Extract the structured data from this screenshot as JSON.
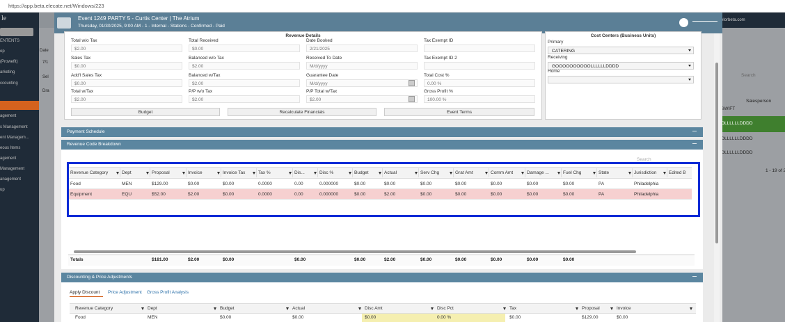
{
  "browser": {
    "url": "https://app.beta.elecate.net/Windows/223"
  },
  "background": {
    "logo": "le",
    "sidebar": [
      "ENTENTS",
      "op",
      "(Prowefit)",
      "arketing",
      "ccounting",
      "agement",
      "s Management",
      "ent Managem...",
      "eous Items",
      "agement",
      "Management",
      "anagement",
      "up"
    ],
    "behind_left": [
      "Date",
      "7/1",
      "Sel",
      "Dra"
    ],
    "behind_right": {
      "user": "elorbeta.com",
      "search": "Search",
      "column": "Salesperson",
      "cells": [
        "SWIFT",
        "OLLLLLLDDDD",
        "OLLLLLLDDDD",
        "OLLLLLLDDDD"
      ],
      "pager": "1 - 19 of 2"
    }
  },
  "window": {
    "title": "Event 1249 PARTY 5 - Curtis Center | The Atrium",
    "subtitle": "Thursday, 01/30/2025, 9:00 AM - 1 - Internal - Stations - Confirmed - Paid"
  },
  "revenue_details": {
    "title": "Revenue Details",
    "columns": [
      [
        {
          "label": "Total w/o Tax",
          "value": "$2.00"
        },
        {
          "label": "Sales Tax",
          "value": "$0.00"
        },
        {
          "label": "Add'l Sales Tax",
          "value": "$0.00"
        },
        {
          "label": "Total w/Tax",
          "value": "$2.00"
        }
      ],
      [
        {
          "label": "Total Received",
          "value": "$0.00"
        },
        {
          "label": "Balanced w/o Tax",
          "value": "$2.00"
        },
        {
          "label": "Balanced w/Tax",
          "value": "$2.00"
        },
        {
          "label": "P/P w/o Tax",
          "value": "$2.00"
        }
      ],
      [
        {
          "label": "Date Booked",
          "value": "2/21/2025"
        },
        {
          "label": "Received To Date",
          "value": "M/d/yyyy"
        },
        {
          "label": "Guarantee Date",
          "value": "M/d/yyyy"
        },
        {
          "label": "P/P Total w/Tax",
          "value": "$2.00"
        }
      ],
      [
        {
          "label": "Tax Exempt ID"
        },
        {
          "label": "Tax Exempt ID 2"
        },
        {
          "label": "Total Cost %",
          "value": "0.00 %"
        },
        {
          "label": "Gross Profit %",
          "value": "100.00 %"
        }
      ]
    ],
    "buttons": [
      "Budget",
      "Recalculate Financials",
      "Event Terms"
    ]
  },
  "cost_centers": {
    "title": "Cost Centers (Business Units)",
    "fields": [
      {
        "label": "Primary",
        "value": "CATERING"
      },
      {
        "label": "Receiving",
        "value": "GOOOOOOOOOOLLLLLLDDDD"
      },
      {
        "label": "Home"
      }
    ]
  },
  "panels": [
    "Payment Schedule",
    "Revenue Code Breakdown"
  ],
  "revenue_table": {
    "search": "Search",
    "columns": [
      "Revenue Category",
      "Dept",
      "Proposal",
      "Invoice",
      "Invoice Tax",
      "Tax %",
      "Dis...",
      "Disc %",
      "Budget",
      "Actual",
      "Serv Chg",
      "Grat Amt",
      "Comm Amt",
      "Damage ...",
      "Fuel Chg",
      "State",
      "Jurisdiction",
      "Edited By"
    ],
    "rows": [
      [
        "Food",
        "MEN",
        "$129.00",
        "$0.00",
        "$0.00",
        "0.0000",
        "0.00",
        "0.000000",
        "$0.00",
        "$0.00",
        "$0.00",
        "$0.00",
        "$0.00",
        "$0.00",
        "$0.00",
        "PA",
        "Philadelphia",
        null
      ],
      [
        "Equipment",
        "EQU",
        "$52.00",
        "$2.00",
        "$0.00",
        "0.0000",
        "0.00",
        "0.000000",
        "$0.00",
        "$2.00",
        "$0.00",
        "$0.00",
        "$0.00",
        "$0.00",
        "$0.00",
        "PA",
        "Philadelphia",
        null
      ]
    ],
    "totals": [
      "Totals",
      null,
      "$181.00",
      "$2.00",
      "$0.00",
      null,
      "$0.00",
      null,
      "$0.00",
      "$2.00",
      "$0.00",
      "$0.00",
      "$0.00",
      "$0.00",
      "$0.00",
      null,
      null,
      null
    ]
  },
  "discounting": {
    "title": "Discounting & Price Adjustments",
    "tabs": [
      "Apply Discount",
      "Price Adjustment",
      "Gross Profit Analysis"
    ],
    "columns": [
      "Revenue Category",
      "Dept",
      "Budget",
      "Actual",
      "Disc Amt",
      "Disc Pct",
      "Tax",
      "Proposal",
      "Invoice"
    ],
    "rows": [
      [
        "Food",
        "MEN",
        "$0.00",
        "$0.00",
        "$0.00",
        "0.00 %",
        "$0.00",
        "$129.00",
        "$0.00"
      ]
    ]
  }
}
